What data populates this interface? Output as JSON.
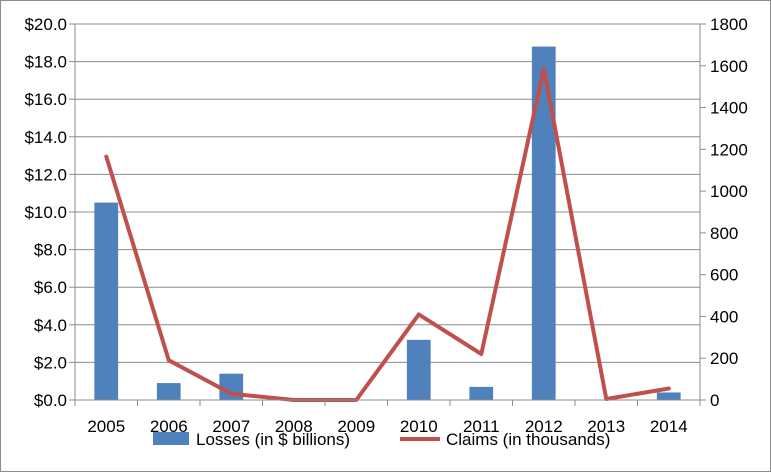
{
  "chart_data": {
    "type": "bar+line",
    "categories": [
      "2005",
      "2006",
      "2007",
      "2008",
      "2009",
      "2010",
      "2011",
      "2012",
      "2013",
      "2014"
    ],
    "series": [
      {
        "name": "Losses (in $ billions)",
        "type": "bar",
        "axis": "left",
        "color": "#4f81bd",
        "values": [
          10.5,
          0.9,
          1.4,
          0.0,
          0.0,
          3.2,
          0.7,
          18.8,
          0.0,
          0.4
        ]
      },
      {
        "name": "Claims (in thousands)",
        "type": "line",
        "axis": "right",
        "color": "#c0504d",
        "values": [
          1165,
          190,
          30,
          0,
          0,
          410,
          220,
          1585,
          5,
          55
        ]
      }
    ],
    "left_axis": {
      "range": [
        0,
        20
      ],
      "ticks": [
        "$0.0",
        "$2.0",
        "$4.0",
        "$6.0",
        "$8.0",
        "$10.0",
        "$12.0",
        "$14.0",
        "$16.0",
        "$18.0",
        "$20.0"
      ]
    },
    "right_axis": {
      "range": [
        0,
        1800
      ],
      "ticks": [
        "0",
        "200",
        "400",
        "600",
        "800",
        "1000",
        "1200",
        "1400",
        "1600",
        "1800"
      ]
    },
    "grid": true,
    "legend_position": "bottom"
  }
}
